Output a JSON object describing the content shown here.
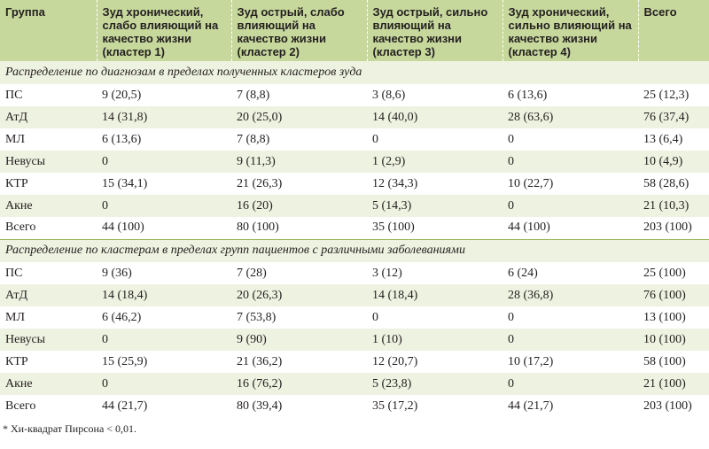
{
  "headers": [
    "Группа",
    "Зуд хронический, слабо влияющий на качество жизни (кластер 1)",
    "Зуд острый, слабо влияющий на качество жизни (кластер 2)",
    "Зуд острый, сильно влияющий на качество жизни (кластер 3)",
    "Зуд хронический, сильно влияющий на качество жизни (кластер 4)",
    "Всего"
  ],
  "sections": [
    {
      "title": "Распределение по диагнозам в пределах полученных кластеров зуда",
      "rows": [
        [
          "ПС",
          "9 (20,5)",
          "7 (8,8)",
          "3 (8,6)",
          "6 (13,6)",
          "25 (12,3)"
        ],
        [
          "АтД",
          "14 (31,8)",
          "20 (25,0)",
          "14 (40,0)",
          "28 (63,6)",
          "76 (37,4)"
        ],
        [
          "МЛ",
          "6 (13,6)",
          "7 (8,8)",
          "0",
          "0",
          "13 (6,4)"
        ],
        [
          "Невусы",
          "0",
          "9 (11,3)",
          "1 (2,9)",
          "0",
          "10 (4,9)"
        ],
        [
          "КТР",
          "15 (34,1)",
          "21 (26,3)",
          "12 (34,3)",
          "10 (22,7)",
          "58 (28,6)"
        ],
        [
          "Акне",
          "0",
          "16 (20)",
          "5 (14,3)",
          "0",
          "21 (10,3)"
        ],
        [
          "Всего",
          "44 (100)",
          "80 (100)",
          "35 (100)",
          "44 (100)",
          "203 (100)"
        ]
      ]
    },
    {
      "title": "Распределение по кластерам в пределах групп пациентов с различными заболеваниями",
      "rows": [
        [
          "ПС",
          "9 (36)",
          "7 (28)",
          "3 (12)",
          "6 (24)",
          "25 (100)"
        ],
        [
          "АтД",
          "14 (18,4)",
          "20 (26,3)",
          "14 (18,4)",
          "28 (36,8)",
          "76 (100)"
        ],
        [
          "МЛ",
          "6 (46,2)",
          "7 (53,8)",
          "0",
          "0",
          "13 (100)"
        ],
        [
          "Невусы",
          "0",
          "9 (90)",
          "1 (10)",
          "0",
          "10 (100)"
        ],
        [
          "КТР",
          "15 (25,9)",
          "21 (36,2)",
          "12 (20,7)",
          "10 (17,2)",
          "58 (100)"
        ],
        [
          "Акне",
          "0",
          "16 (76,2)",
          "5 (23,8)",
          "0",
          "21 (100)"
        ],
        [
          "Всего",
          "44 (21,7)",
          "80 (39,4)",
          "35 (17,2)",
          "44 (21,7)",
          "203 (100)"
        ]
      ]
    }
  ],
  "footnote": "* Хи-квадрат Пирсона < 0,01.",
  "colors": {
    "header_bg": "#c7d89c",
    "stripe_bg": "#eef2e0",
    "rule": "#9bb55b"
  }
}
